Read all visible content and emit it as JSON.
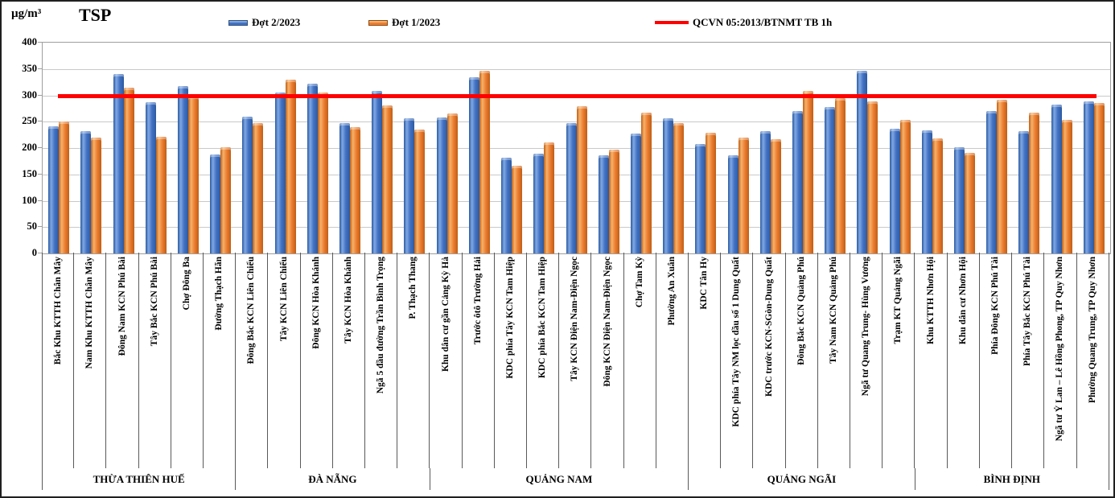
{
  "header": {
    "unit_label": "µg/m³",
    "title": "TSP"
  },
  "legend": {
    "items": [
      {
        "label": "Đợt 2/2023",
        "type": "bar",
        "color": "#4472C4"
      },
      {
        "label": "Đợt 1/2023",
        "type": "bar",
        "color": "#ED7D31"
      },
      {
        "label": "QCVN 05:2013/BTNMT  TB 1h",
        "type": "line",
        "color": "#FF0000"
      }
    ]
  },
  "chart_data": {
    "type": "bar",
    "title": "TSP",
    "ylabel": "µg/m³",
    "ylim": [
      0,
      400
    ],
    "yticks": [
      0,
      50,
      100,
      150,
      200,
      250,
      300,
      350,
      400
    ],
    "grid": true,
    "legend_position": "top",
    "reference_line": {
      "label": "QCVN 05:2013/BTNMT  TB 1h",
      "value": 300,
      "color": "#FF0000"
    },
    "groups": [
      {
        "name": "THỪA THIÊN HUẾ",
        "count": 6
      },
      {
        "name": "ĐÀ NẴNG",
        "count": 6
      },
      {
        "name": "QUẢNG NAM",
        "count": 8
      },
      {
        "name": "QUẢNG NGÃI",
        "count": 7
      },
      {
        "name": "BÌNH ĐỊNH",
        "count": 6
      }
    ],
    "categories": [
      "Bắc Khu KTTH Chân Mây",
      "Nam Khu KTTH Chân Mây",
      "Đông Nam KCN Phú Bài",
      "Tây Bắc KCN Phú Bài",
      "Chợ Đông Ba",
      "Đường Thạch Hãn",
      "Đông Bắc KCN Liên Chiểu",
      "Tây KCN Liên Chiểu",
      "Đông KCN Hòa Khánh",
      "Tây KCN Hòa Khánh",
      "Ngã 5 đầu đường Trần Bình Trọng",
      "P. Thạch Thang",
      "Khu dân cư gần Cảng Kỳ Hà",
      "Trước ôtô Trường Hải",
      "KDC phía Tây KCN Tam Hiệp",
      "KDC phía Bắc KCN Tam Hiệp",
      "Tây KCN Điện Nam-Điện Ngọc",
      "Đông KCN Điện Nam-Điện Ngọc",
      "Chợ Tam Kỳ",
      "Phường An Xuân",
      "KDC Tân Hy",
      "KDC phía Tây NM lọc dầu số 1 Dung Quất",
      "KDC trước KCN-SGòn-Dung Quất",
      "Đông Bắc KCN Quảng Phú",
      "Tây Nam KCN Quảng Phú",
      "Ngã tư Quang Trung- Hùng Vương",
      "Trạm KT Quảng Ngãi",
      "Khu KTTH Nhơn Hội",
      "Khu dân cư Nhơn Hội",
      "Phía Đông KCN Phú Tài",
      "Phía Tây Bắc KCN Phú Tài",
      "Ngã tư Ỷ Lan – Lê Hồng Phong, TP Quy Nhơn",
      "Phường Quang Trung, TP Quy Nhơn"
    ],
    "series": [
      {
        "name": "Đợt 2/2023",
        "color": "#4472C4",
        "color_dark": "#2C5AA0",
        "color_light": "#7FA8E3",
        "values": [
          241,
          232,
          341,
          287,
          318,
          188,
          259,
          306,
          322,
          248,
          308,
          257,
          258,
          335,
          181,
          190,
          248,
          186,
          227,
          257,
          207,
          186,
          232,
          271,
          278,
          346,
          236,
          234,
          202,
          271,
          232,
          283,
          289
        ]
      },
      {
        "name": "Đợt 1/2023",
        "color": "#ED7D31",
        "color_dark": "#BF5E15",
        "color_light": "#F6B26B",
        "values": [
          251,
          220,
          314,
          221,
          298,
          202,
          247,
          330,
          305,
          240,
          281,
          235,
          266,
          347,
          166,
          211,
          280,
          197,
          267,
          248,
          229,
          220,
          217,
          308,
          294,
          288,
          253,
          218,
          191,
          291,
          267,
          254,
          286
        ]
      }
    ]
  }
}
